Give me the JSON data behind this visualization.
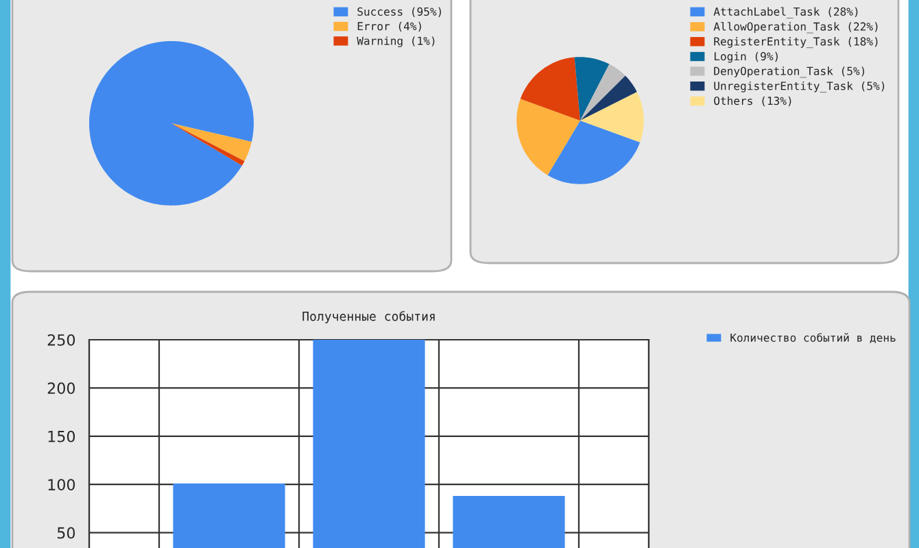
{
  "chart_data": [
    {
      "type": "pie",
      "categories": [
        "Success (95%)",
        "Error (4%)",
        "Warning (1%)"
      ],
      "values": [
        95,
        4,
        1
      ],
      "colors": [
        "#4189ef",
        "#ffb13d",
        "#e0400a"
      ],
      "legend": "top right"
    },
    {
      "type": "pie",
      "categories": [
        "AttachLabel_Task (28%)",
        "AllowOperation_Task (22%)",
        "RegisterEntity_Task (18%)",
        "Login (9%)",
        "DenyOperation_Task (5%)",
        "UnregisterEntity_Task (5%)",
        "Others (13%)"
      ],
      "values": [
        28,
        22,
        18,
        9,
        5,
        5,
        13
      ],
      "colors": [
        "#4189ef",
        "#ffb13d",
        "#e0400a",
        "#086a9a",
        "#c0c0c0",
        "#1a3a6a",
        "#ffe08a"
      ],
      "legend": "top right"
    },
    {
      "type": "bar",
      "title": "Полученные события",
      "categories": [
        null,
        null,
        null
      ],
      "series": [
        {
          "name": "Количество событий в день",
          "color": "#418bef",
          "values": [
            101,
            250,
            88
          ]
        }
      ],
      "ylim": [
        0,
        250
      ],
      "yticks": [
        50,
        100,
        150,
        200,
        250
      ],
      "grid": true,
      "legend": "right"
    }
  ]
}
